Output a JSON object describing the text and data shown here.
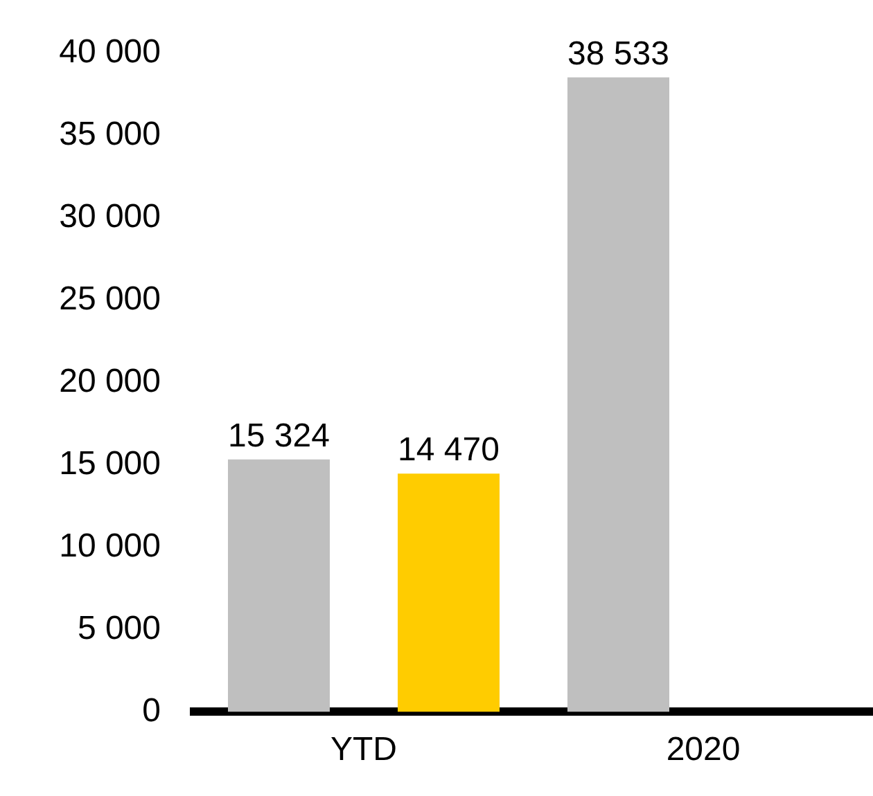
{
  "chart_data": {
    "type": "bar",
    "categories": [
      "YTD",
      "2020"
    ],
    "series": [
      {
        "color": "#bfbfbf",
        "values": [
          15324,
          38533
        ],
        "value_labels": [
          "15 324",
          "38 533"
        ]
      },
      {
        "color": "#ffcc00",
        "values": [
          14470,
          null
        ],
        "value_labels": [
          "14 470",
          null
        ]
      }
    ],
    "ylim": [
      0,
      40000
    ],
    "yticks": [
      {
        "value": 0,
        "label": "0"
      },
      {
        "value": 5000,
        "label": "5 000"
      },
      {
        "value": 10000,
        "label": "10 000"
      },
      {
        "value": 15000,
        "label": "15 000"
      },
      {
        "value": 20000,
        "label": "20 000"
      },
      {
        "value": 25000,
        "label": "25 000"
      },
      {
        "value": 30000,
        "label": "30 000"
      },
      {
        "value": 35000,
        "label": "35 000"
      },
      {
        "value": 40000,
        "label": "40 000"
      }
    ]
  }
}
